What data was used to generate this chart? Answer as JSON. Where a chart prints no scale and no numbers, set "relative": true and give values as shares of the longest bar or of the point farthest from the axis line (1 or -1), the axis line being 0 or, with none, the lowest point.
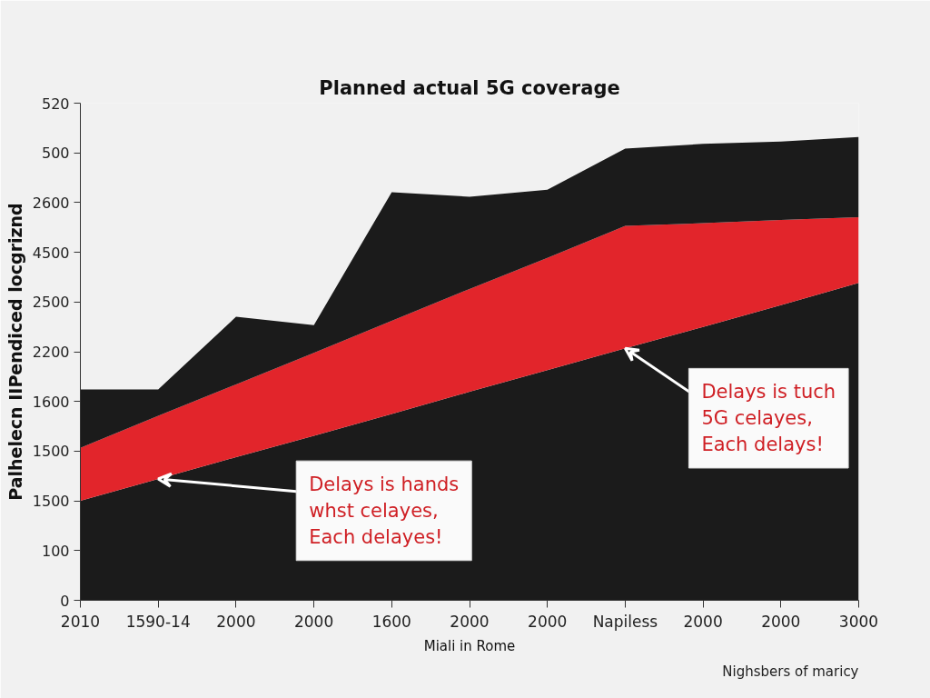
{
  "chart_data": {
    "type": "area",
    "title": "Planned actual 5G coverage",
    "xlabel": "Miali in Rome",
    "ylabel": "Palhelecn IIPendiced locgriznd",
    "categories": [
      "2010",
      "1590-14",
      "2000",
      "2000",
      "1600",
      "2000",
      "2000",
      "Napiless",
      "2000",
      "2000",
      "3000"
    ],
    "relative": true,
    "stacked": true,
    "series": [
      {
        "color": "#1b1b1b",
        "values": [
          0.215,
          0.262,
          0.309,
          0.355,
          0.402,
          0.45,
          0.497,
          0.544,
          0.59,
          0.637,
          0.685
        ]
      },
      {
        "color": "#e2252b",
        "values": [
          0.114,
          0.136,
          0.157,
          0.179,
          0.201,
          0.222,
          0.242,
          0.264,
          0.224,
          0.184,
          0.142
        ]
      },
      {
        "color": "#1b1b1b",
        "values": [
          0.126,
          0.057,
          0.146,
          0.06,
          0.278,
          0.199,
          0.147,
          0.167,
          0.171,
          0.169,
          0.173
        ]
      }
    ],
    "annotations": [
      "520",
      "500",
      "2600",
      "4500",
      "2500",
      "2200",
      "1600",
      "1500",
      "1500",
      "100",
      "0",
      {
        "text": "Delays is tuch\n5G celayes,\nEach delays!",
        "x": "Napiless",
        "y": 0.544
      },
      {
        "text": "Delays is hands\nwhst celayes,\nEach delayes!",
        "x": "1590-14",
        "y": 0.262
      },
      "Nighsbers of maricy"
    ],
    "grid": false
  }
}
